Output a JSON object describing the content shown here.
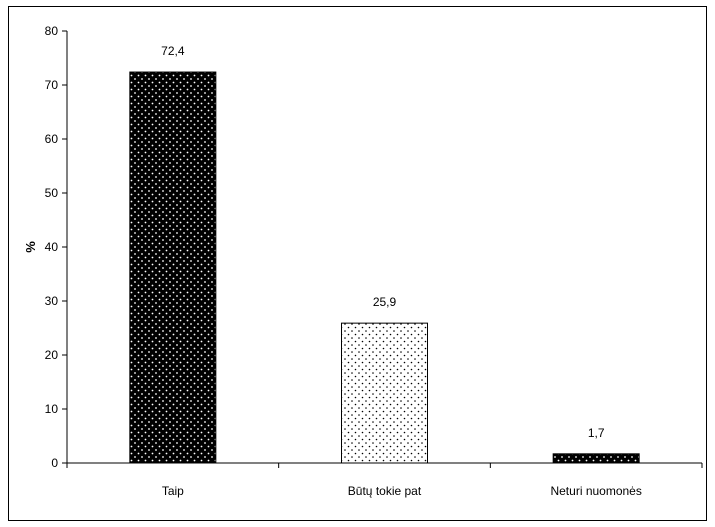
{
  "chart_data": {
    "type": "bar",
    "title": "",
    "xlabel": "",
    "ylabel": "%",
    "ylim": [
      0,
      80
    ],
    "yticks": [
      0,
      10,
      20,
      30,
      40,
      50,
      60,
      70,
      80
    ],
    "grid": false,
    "legend": "none",
    "categories": [
      "Taip",
      "Būtų tokie pat",
      "Neturi nuomonės"
    ],
    "values": [
      72.4,
      25.9,
      1.7
    ],
    "data_labels": [
      "72,4",
      "25,9",
      "1,7"
    ],
    "bar_styles": [
      {
        "fill": "#000000",
        "dots": "#ffffff"
      },
      {
        "fill": "#ffffff",
        "dots": "#000000"
      },
      {
        "fill": "#000000",
        "dots": "#ffffff"
      }
    ]
  }
}
